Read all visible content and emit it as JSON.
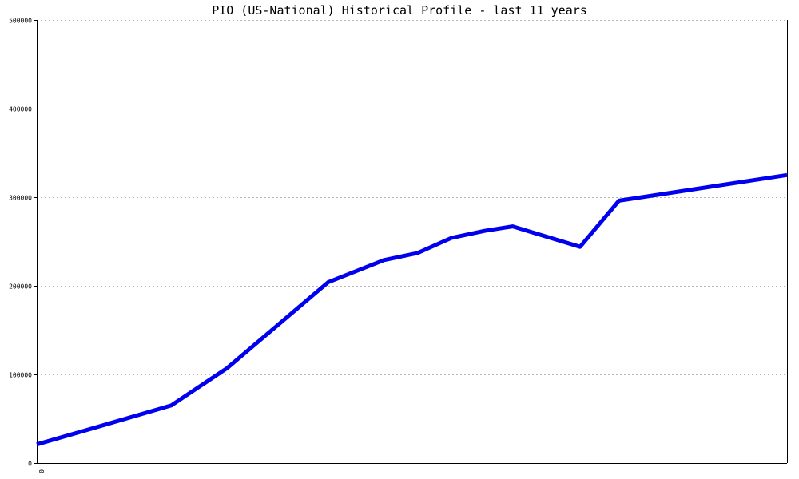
{
  "chart_data": {
    "type": "line",
    "title": "PIO (US-National) Historical Profile - last 11 years",
    "xlabel": "",
    "ylabel": "",
    "x_tick_labels": [
      "0"
    ],
    "y_ticks": [
      0,
      100000,
      200000,
      300000,
      400000,
      500000
    ],
    "y_tick_labels": [
      "0",
      "100000",
      "200000",
      "300000",
      "400000",
      "500000"
    ],
    "ylim": [
      0,
      500000
    ],
    "grid": true,
    "line_color": "#0000ee",
    "series": [
      {
        "values": [
          21000,
          43000,
          65000,
          107000,
          150000,
          204000,
          229000,
          237000,
          254000,
          262000,
          267000,
          244000,
          296000,
          325000
        ],
        "x": [
          0,
          0.194,
          0.387,
          0.548,
          0.677,
          0.839,
          1.0,
          1.097,
          1.194,
          1.29,
          1.371,
          1.565,
          1.677,
          2.161
        ]
      }
    ],
    "x_range": [
      0,
      2.161
    ]
  }
}
